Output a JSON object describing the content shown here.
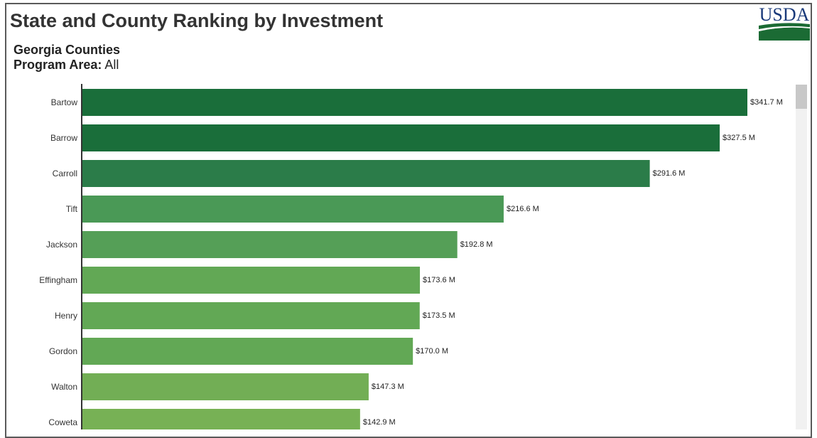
{
  "header": {
    "title": "State and County Ranking by Investment",
    "subtitle": "Georgia Counties",
    "program_area_label": "Program Area:",
    "program_area_value": "All"
  },
  "logo": {
    "text": "USDA",
    "text_color": "#1a3a7a",
    "swoosh_color": "#1b6b34"
  },
  "chart_data": {
    "type": "bar",
    "orientation": "horizontal",
    "categories": [
      "Bartow",
      "Barrow",
      "Carroll",
      "Tift",
      "Jackson",
      "Effingham",
      "Henry",
      "Gordon",
      "Walton",
      "Coweta"
    ],
    "values": [
      341.7,
      327.5,
      291.6,
      216.6,
      192.8,
      173.6,
      173.5,
      170.0,
      147.3,
      142.9
    ],
    "value_labels": [
      "$341.7 M",
      "$327.5 M",
      "$291.6 M",
      "$216.6 M",
      "$192.8 M",
      "$173.6 M",
      "$173.5 M",
      "$170.0 M",
      "$147.3 M",
      "$142.9 M"
    ],
    "colors": [
      "#1a6e3a",
      "#1a6e3a",
      "#2b7c49",
      "#4a9956",
      "#559f57",
      "#62a855",
      "#62a855",
      "#62a855",
      "#72ae55",
      "#77b155"
    ],
    "xlim": [
      0,
      341.7
    ],
    "grid": false,
    "legend": "none"
  }
}
